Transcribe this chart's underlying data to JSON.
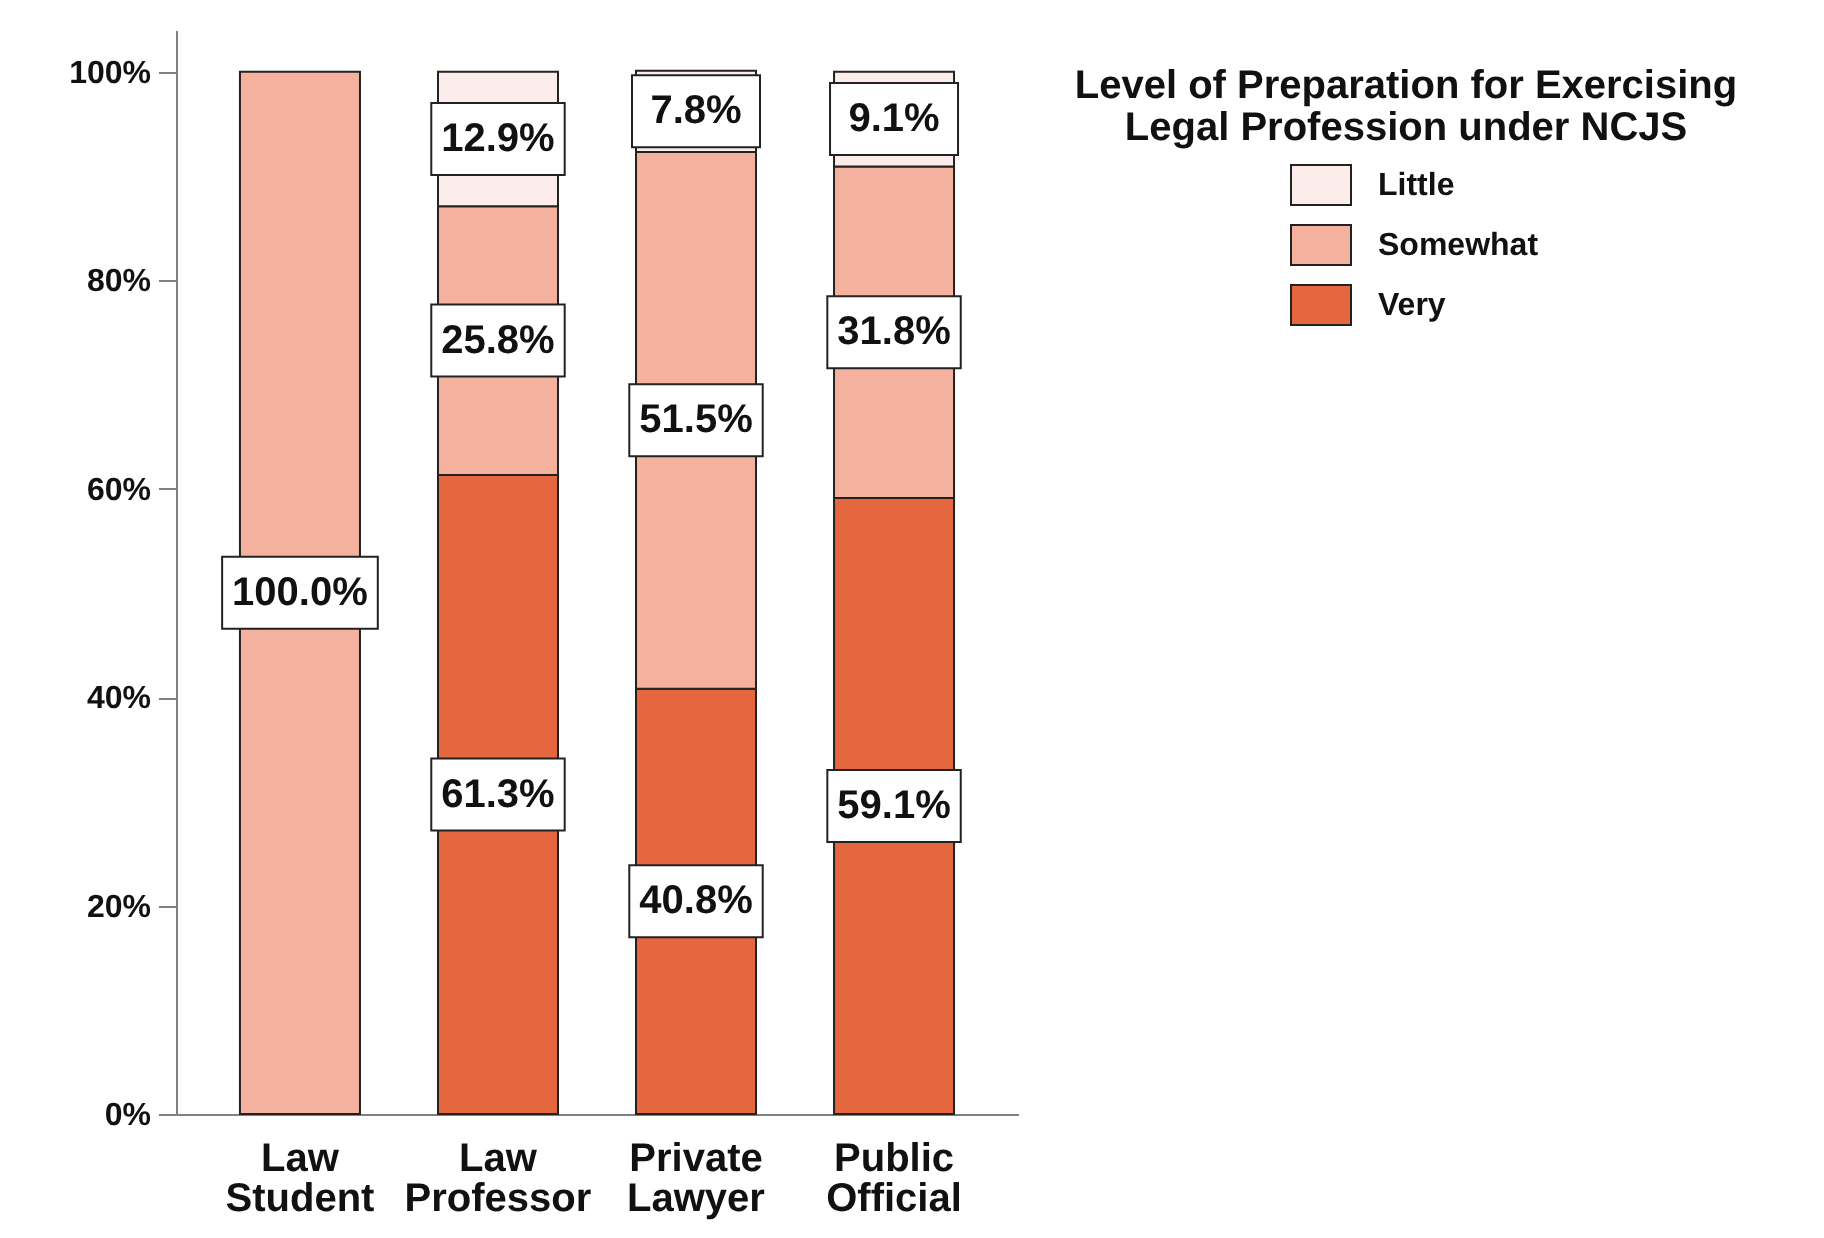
{
  "chart_data": {
    "type": "bar",
    "stacked": true,
    "categories": [
      "Law Student",
      "Law Professor",
      "Private Lawyer",
      "Public Official"
    ],
    "series": [
      {
        "name": "Very",
        "color": "#e5673f",
        "values": [
          null,
          61.3,
          40.8,
          59.1
        ],
        "value_labels": [
          null,
          "61.3%",
          "40.8%",
          "59.1%"
        ]
      },
      {
        "name": "Somewhat",
        "color": "#f4b29e",
        "values": [
          100,
          25.8,
          51.5,
          31.8
        ],
        "value_labels": [
          "100.0%",
          "25.8%",
          "51.5%",
          "31.8%"
        ]
      },
      {
        "name": "Little",
        "color": "#fdedea",
        "values": [
          null,
          12.9,
          7.8,
          9.1
        ],
        "value_labels": [
          null,
          "12.9%",
          "7.8%",
          "9.1%"
        ]
      }
    ],
    "legend_title": "Level of Preparation for Exercising Legal Profession under NCJS",
    "legend": "top right",
    "ylim": [
      0,
      104
    ],
    "yticks": [
      {
        "value": 0,
        "label": "0%"
      },
      {
        "value": 20,
        "label": "20%"
      },
      {
        "value": 40,
        "label": "40%"
      },
      {
        "value": 60,
        "label": "60%"
      },
      {
        "value": 80,
        "label": "80%"
      },
      {
        "value": 100,
        "label": "100%"
      }
    ],
    "grid": false
  }
}
